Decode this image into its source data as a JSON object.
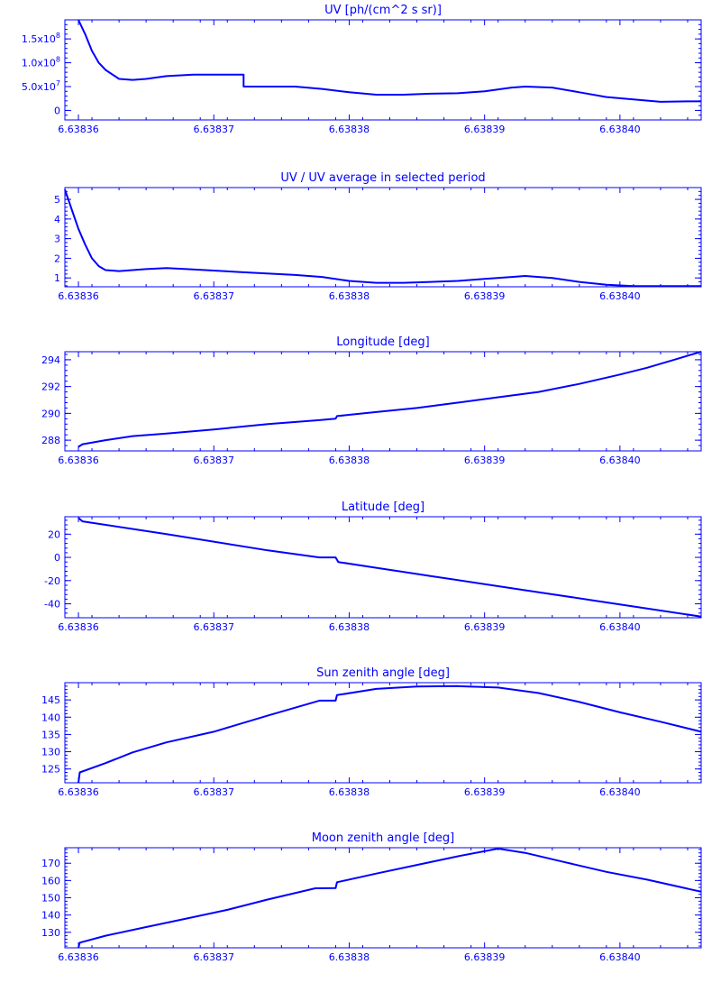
{
  "colors": {
    "line": "#0000ff",
    "background": "#ffffff"
  },
  "x_tick_labels": [
    "6.63836",
    "6.63837",
    "6.63838",
    "6.63839",
    "6.63840"
  ],
  "chart_data": [
    {
      "type": "line",
      "title": "UV [ph/(cm^2 s sr)]",
      "xlim": [
        6.638359,
        6.638406
      ],
      "ylim": [
        -20000000.0,
        190000000.0
      ],
      "yticks": [
        0,
        50000000.0,
        100000000.0,
        150000000.0
      ],
      "yticklabels": [
        "0",
        "5.0x10^7",
        "1.0x10^8",
        "1.5x10^8"
      ],
      "x": [
        6.63836,
        6.6383605,
        6.638361,
        6.6383615,
        6.638362,
        6.638363,
        6.638364,
        6.638365,
        6.6383665,
        6.6383685,
        6.6383722,
        6.6383722,
        6.638376,
        6.638378,
        6.63838,
        6.638382,
        6.638384,
        6.638386,
        6.638388,
        6.63839,
        6.638392,
        6.638393,
        6.638395,
        6.638397,
        6.638399,
        6.638401,
        6.638403,
        6.638405,
        6.638406
      ],
      "y": [
        190000000.0,
        160000000.0,
        125000000.0,
        100000000.0,
        85000000.0,
        66000000.0,
        64000000.0,
        66000000.0,
        72000000.0,
        75000000.0,
        75000000.0,
        50000000.0,
        50000000.0,
        45000000.0,
        38000000.0,
        33000000.0,
        33000000.0,
        35000000.0,
        36000000.0,
        40000000.0,
        48000000.0,
        50000000.0,
        48000000.0,
        38000000.0,
        28000000.0,
        23000000.0,
        18000000.0,
        19000000.0,
        19000000.0
      ]
    },
    {
      "type": "line",
      "title": "UV / UV average in selected period",
      "xlim": [
        6.638359,
        6.638406
      ],
      "ylim": [
        0.55,
        5.6
      ],
      "yticks": [
        1,
        2,
        3,
        4,
        5
      ],
      "yticklabels": [
        "1",
        "2",
        "3",
        "4",
        "5"
      ],
      "x": [
        6.638359,
        6.6383595,
        6.63836,
        6.6383605,
        6.638361,
        6.6383615,
        6.638362,
        6.638363,
        6.638364,
        6.638365,
        6.6383665,
        6.638368,
        6.638372,
        6.638376,
        6.638378,
        6.63838,
        6.638382,
        6.638384,
        6.638386,
        6.638388,
        6.63839,
        6.638392,
        6.638393,
        6.638395,
        6.638397,
        6.638399,
        6.638401,
        6.638403,
        6.638406
      ],
      "y": [
        5.5,
        4.5,
        3.5,
        2.7,
        2.0,
        1.6,
        1.4,
        1.35,
        1.4,
        1.45,
        1.5,
        1.45,
        1.3,
        1.15,
        1.05,
        0.85,
        0.75,
        0.75,
        0.8,
        0.85,
        0.95,
        1.05,
        1.1,
        1.0,
        0.8,
        0.65,
        0.58,
        0.58,
        0.58
      ]
    },
    {
      "type": "line",
      "title": "Longitude [deg]",
      "xlim": [
        6.638359,
        6.638406
      ],
      "ylim": [
        287.2,
        294.6
      ],
      "yticks": [
        288,
        290,
        292,
        294
      ],
      "yticklabels": [
        "288",
        "290",
        "292",
        "294"
      ],
      "x": [
        6.63836,
        6.6383603,
        6.638362,
        6.638364,
        6.6383665,
        6.63837,
        6.638374,
        6.6383779,
        6.638379,
        6.6383791,
        6.638382,
        6.638385,
        6.638388,
        6.638391,
        6.638394,
        6.638397,
        6.6384,
        6.638402,
        6.638404,
        6.638406
      ],
      "y": [
        287.5,
        287.7,
        288.0,
        288.3,
        288.5,
        288.8,
        289.2,
        289.5,
        289.6,
        289.8,
        290.1,
        290.4,
        290.8,
        291.2,
        291.6,
        292.2,
        292.9,
        293.4,
        294.0,
        294.6
      ]
    },
    {
      "type": "line",
      "title": "Latitude [deg]",
      "xlim": [
        6.638359,
        6.638406
      ],
      "ylim": [
        -52,
        35
      ],
      "yticks": [
        -40,
        -20,
        0,
        20
      ],
      "yticklabels": [
        "-40",
        "-20",
        "0",
        "20"
      ],
      "x": [
        6.63836,
        6.6383603,
        6.6383665,
        6.638374,
        6.6383778,
        6.638379,
        6.6383792,
        6.638382,
        6.638386,
        6.63839,
        6.638394,
        6.638398,
        6.638402,
        6.638406
      ],
      "y": [
        34,
        31,
        20,
        6,
        0,
        0,
        -4,
        -9,
        -16,
        -23,
        -30,
        -37,
        -44,
        -51
      ]
    },
    {
      "type": "line",
      "title": "Sun zenith angle [deg]",
      "xlim": [
        6.638359,
        6.638406
      ],
      "ylim": [
        121,
        150
      ],
      "yticks": [
        125,
        130,
        135,
        140,
        145
      ],
      "yticklabels": [
        "125",
        "130",
        "135",
        "140",
        "145"
      ],
      "x": [
        6.63836,
        6.6383601,
        6.638362,
        6.638364,
        6.6383665,
        6.63837,
        6.638374,
        6.6383778,
        6.638379,
        6.6383791,
        6.638382,
        6.638385,
        6.638388,
        6.638391,
        6.638394,
        6.638397,
        6.6384,
        6.638403,
        6.638406
      ],
      "y": [
        121,
        124,
        126.7,
        129.8,
        132.7,
        135.8,
        140.5,
        144.8,
        144.8,
        146.4,
        148.2,
        148.9,
        149.0,
        148.6,
        147.0,
        144.4,
        141.4,
        138.7,
        135.8
      ]
    },
    {
      "type": "line",
      "title": "Moon zenith angle [deg]",
      "xlim": [
        6.638359,
        6.638406
      ],
      "ylim": [
        121,
        179
      ],
      "yticks": [
        130,
        140,
        150,
        160,
        170
      ],
      "yticklabels": [
        "130",
        "140",
        "150",
        "160",
        "170"
      ],
      "x": [
        6.63836,
        6.6383601,
        6.638362,
        6.638365,
        6.638368,
        6.638371,
        6.638374,
        6.6383775,
        6.638379,
        6.6383791,
        6.638382,
        6.638385,
        6.638388,
        6.638391,
        6.638393,
        6.638396,
        6.638399,
        6.638402,
        6.638406
      ],
      "y": [
        121,
        124,
        128,
        133,
        138,
        143,
        149,
        155.5,
        155.6,
        159,
        164,
        169,
        174,
        178.5,
        176,
        170.5,
        165,
        160.5,
        153.5
      ]
    }
  ]
}
